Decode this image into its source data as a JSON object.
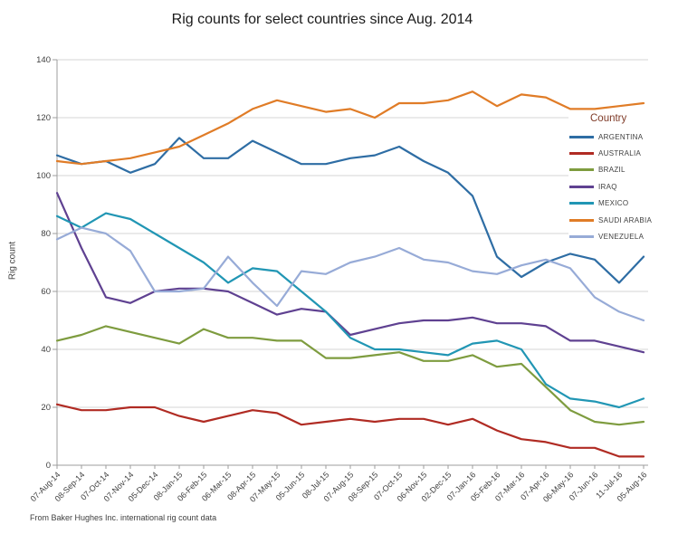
{
  "chart_data": {
    "type": "line",
    "title": "Rig counts for select countries since Aug. 2014",
    "ylabel": "Rig count",
    "xlabel": "",
    "ylim": [
      0,
      140
    ],
    "yticks": [
      0,
      20,
      40,
      60,
      80,
      100,
      120,
      140
    ],
    "grid": true,
    "legend_title": "Country",
    "legend_position": "right",
    "source_note": "From Baker Hughes Inc. international rig count data",
    "categories": [
      "07-Aug-14",
      "08-Sep-14",
      "07-Oct-14",
      "07-Nov-14",
      "05-Dec-14",
      "08-Jan-15",
      "06-Feb-15",
      "06-Mar-15",
      "08-Apr-15",
      "07-May-15",
      "05-Jun-15",
      "08-Jul-15",
      "07-Aug-15",
      "08-Sep-15",
      "07-Oct-15",
      "06-Nov-15",
      "02-Dec-15",
      "07-Jan-16",
      "05-Feb-16",
      "07-Mar-16",
      "07-Apr-16",
      "06-May-16",
      "07-Jun-16",
      "11-Jul-16",
      "05-Aug-16"
    ],
    "series": [
      {
        "name": "ARGENTINA",
        "color": "#2E6DA4",
        "values": [
          107,
          104,
          105,
          101,
          104,
          113,
          106,
          106,
          112,
          108,
          104,
          104,
          106,
          107,
          110,
          105,
          101,
          93,
          72,
          65,
          70,
          73,
          71,
          63,
          72
        ]
      },
      {
        "name": "AUSTRALIA",
        "color": "#B02B23",
        "values": [
          21,
          19,
          19,
          20,
          20,
          17,
          15,
          17,
          19,
          18,
          14,
          15,
          16,
          15,
          16,
          16,
          14,
          16,
          12,
          9,
          8,
          6,
          6,
          3,
          3
        ]
      },
      {
        "name": "BRAZIL",
        "color": "#7E9C3F",
        "values": [
          43,
          45,
          48,
          46,
          44,
          42,
          47,
          44,
          44,
          43,
          43,
          37,
          37,
          38,
          39,
          36,
          36,
          38,
          34,
          35,
          27,
          19,
          15,
          14,
          15
        ]
      },
      {
        "name": "IRAQ",
        "color": "#5F4191",
        "values": [
          94,
          75,
          58,
          56,
          60,
          61,
          61,
          60,
          56,
          52,
          54,
          53,
          45,
          47,
          49,
          50,
          50,
          51,
          49,
          49,
          48,
          43,
          43,
          41,
          39
        ]
      },
      {
        "name": "MEXICO",
        "color": "#2196B4",
        "values": [
          86,
          82,
          87,
          85,
          80,
          75,
          70,
          63,
          68,
          67,
          60,
          53,
          44,
          40,
          40,
          39,
          38,
          42,
          43,
          40,
          28,
          23,
          22,
          20,
          23
        ]
      },
      {
        "name": "SAUDI ARABIA",
        "color": "#E07C27",
        "values": [
          105,
          104,
          105,
          106,
          108,
          110,
          114,
          118,
          123,
          126,
          124,
          122,
          123,
          120,
          125,
          125,
          126,
          129,
          124,
          128,
          127,
          123,
          123,
          124,
          125
        ]
      },
      {
        "name": "VENEZUELA",
        "color": "#97ABD7",
        "values": [
          78,
          82,
          80,
          74,
          60,
          60,
          61,
          72,
          63,
          55,
          67,
          66,
          70,
          72,
          75,
          71,
          70,
          67,
          66,
          69,
          71,
          68,
          58,
          53,
          50
        ]
      }
    ]
  }
}
